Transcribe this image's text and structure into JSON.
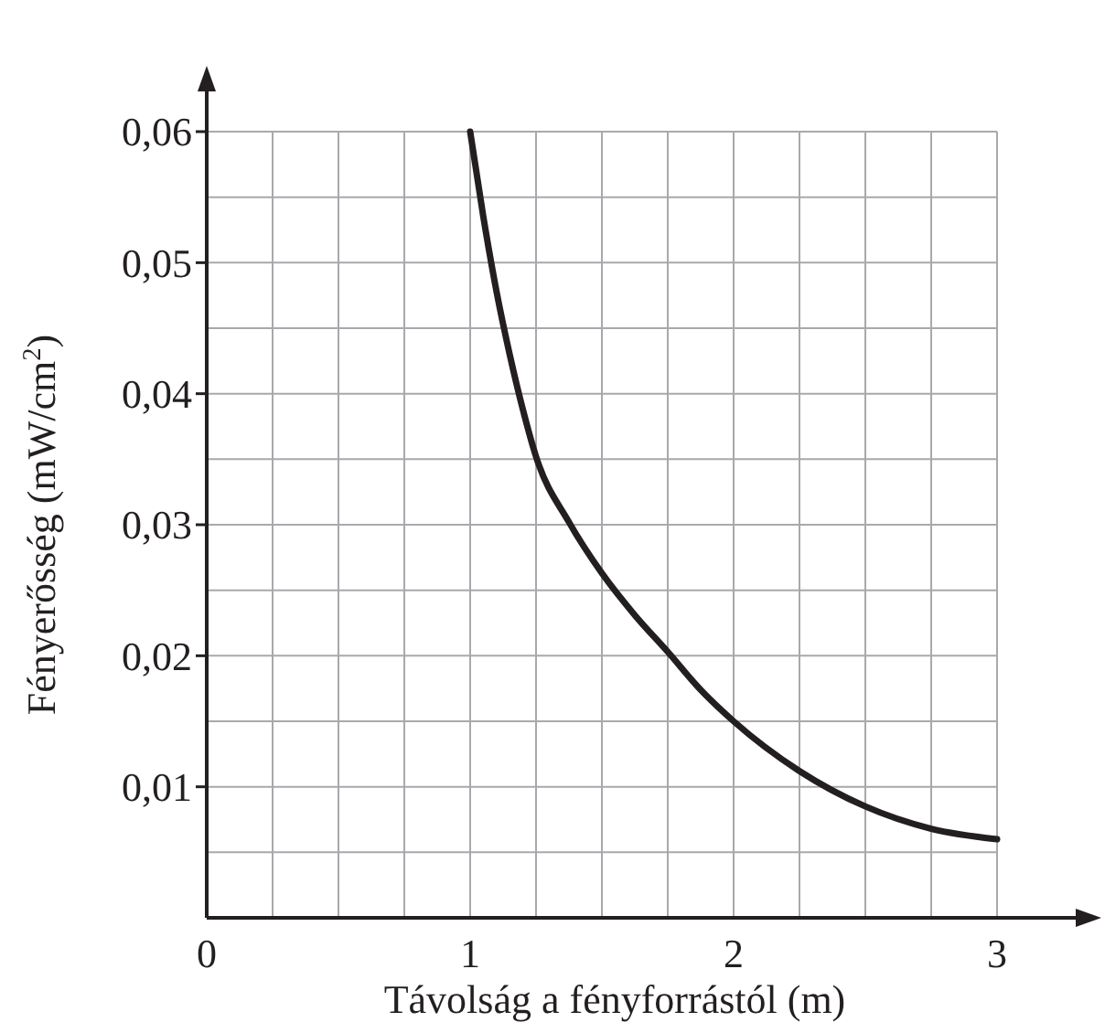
{
  "chart_data": {
    "type": "line",
    "xlabel": "Távolság a fényforrástól (m)",
    "ylabel": "Fényerősség (mW/cm$^{2}$)",
    "x": [
      1,
      1.05,
      1.1,
      1.15,
      1.2,
      1.25,
      1.375,
      1.5,
      1.625,
      1.75,
      1.875,
      2,
      2.25,
      2.5,
      2.75,
      3
    ],
    "series": [
      {
        "color": "#231f20",
        "values": [
          0.06,
          0.0535,
          0.0478,
          0.043,
          0.0388,
          0.0352,
          0.0302,
          0.0263,
          0.0231,
          0.0203,
          0.0174,
          0.015,
          0.0112,
          0.0085,
          0.0068,
          0.006
        ]
      }
    ],
    "xlim": [
      0,
      3
    ],
    "ylim": [
      0,
      0.06
    ],
    "xticks": [
      0,
      {
        "value": 0.25,
        "label": null
      },
      {
        "value": 0.5,
        "label": null
      },
      {
        "value": 0.75,
        "label": null
      },
      1,
      {
        "value": 1.25,
        "label": null
      },
      {
        "value": 1.5,
        "label": null
      },
      {
        "value": 1.75,
        "label": null
      },
      2,
      {
        "value": 2.25,
        "label": null
      },
      {
        "value": 2.5,
        "label": null
      },
      {
        "value": 2.75,
        "label": null
      },
      3
    ],
    "yticks": [
      {
        "value": 0.005,
        "label": null
      },
      {
        "value": 0.01,
        "label": "0,01"
      },
      {
        "value": 0.015,
        "label": null
      },
      {
        "value": 0.02,
        "label": "0,02"
      },
      {
        "value": 0.025,
        "label": null
      },
      {
        "value": 0.03,
        "label": "0,03"
      },
      {
        "value": 0.035,
        "label": null
      },
      {
        "value": 0.04,
        "label": "0,04"
      },
      {
        "value": 0.045,
        "label": null
      },
      {
        "value": 0.05,
        "label": "0,05"
      },
      {
        "value": 0.055,
        "label": null
      },
      {
        "value": 0.06,
        "label": "0,06"
      }
    ],
    "grid": true,
    "marker": "none",
    "line_style": "solid"
  }
}
